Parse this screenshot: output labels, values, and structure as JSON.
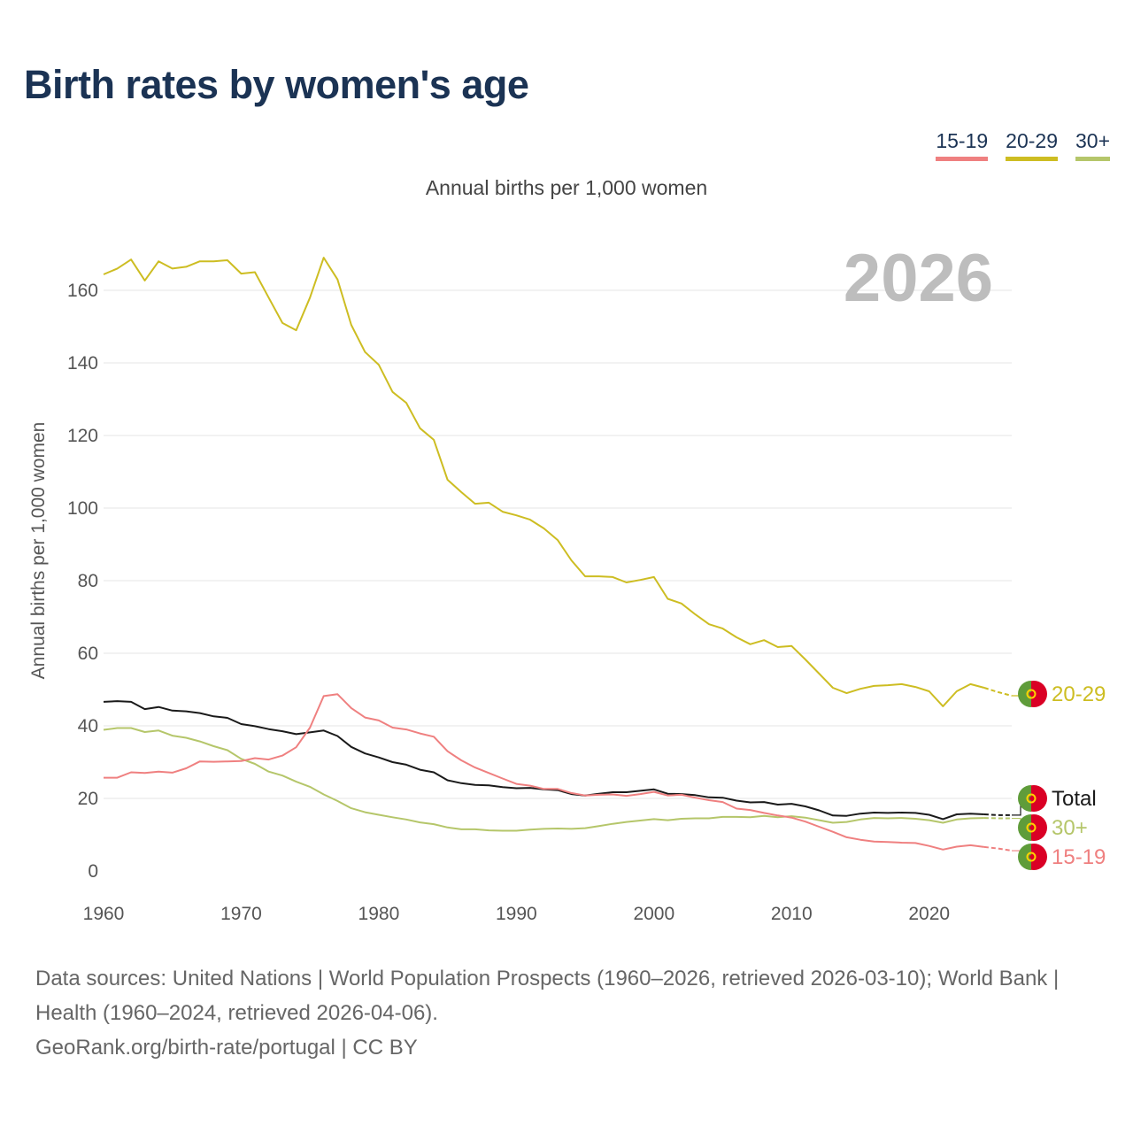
{
  "title": "Birth rates by women's age",
  "subtitle": "Annual births per 1,000 women",
  "sources": {
    "line1": "Data sources: United Nations | World Population Prospects (1960–2026, retrieved 2026-03-10); World Bank | Health (1960–2024, retrieved 2026-04-06).",
    "line2": "GeoRank.org/birth-rate/portugal | CC BY"
  },
  "colors": {
    "15-19": "#ef8080",
    "20-29": "#cdbd22",
    "30+": "#b5c66a",
    "Total": "#1a1a1a"
  },
  "chart_data": {
    "type": "line",
    "title": "Birth rates by women's age",
    "xlabel": "",
    "ylabel": "Annual births per 1,000 women",
    "year_label": "2026",
    "xlim": [
      1960,
      2026
    ],
    "ylim": [
      0,
      170
    ],
    "xticks": [
      1960,
      1970,
      1980,
      1990,
      2000,
      2010,
      2020
    ],
    "yticks": [
      0,
      20,
      40,
      60,
      80,
      100,
      120,
      140,
      160
    ],
    "grid": true,
    "legend": {
      "placement": "top-right",
      "entries": [
        "15-19",
        "20-29",
        "30+"
      ]
    },
    "projection_start": 2024,
    "x_start": 1960,
    "series": [
      {
        "name": "20-29",
        "end_label": "20-29",
        "values": [
          164.4,
          166,
          168.5,
          162.7,
          168,
          166,
          166.5,
          168,
          168,
          168.3,
          164.6,
          165,
          158,
          151,
          149,
          158,
          169,
          163,
          150.5,
          143,
          139.5,
          132,
          129,
          122,
          118.8,
          107.8,
          104.4,
          101.2,
          101.5,
          99,
          98,
          96.8,
          94.4,
          91.2,
          85.6,
          81.2,
          81.2,
          81,
          79.5,
          80.2,
          81,
          75,
          73.7,
          70.7,
          68,
          66.8,
          64.4,
          62.5,
          63.6,
          61.7,
          62,
          58.3,
          54.4,
          50.5,
          49,
          50.2,
          51,
          51.2,
          51.5,
          50.7,
          49.5,
          45.4,
          49.5,
          51.5,
          50.5,
          49.3,
          48.3
        ]
      },
      {
        "name": "Total",
        "end_label": "Total",
        "values": [
          46.6,
          46.8,
          46.6,
          44.6,
          45.2,
          44.2,
          44,
          43.5,
          42.6,
          42.2,
          40.5,
          39.9,
          39.1,
          38.5,
          37.7,
          38.2,
          38.7,
          37.2,
          34.2,
          32.4,
          31.3,
          30,
          29.3,
          27.9,
          27.2,
          25,
          24.2,
          23.7,
          23.6,
          23.1,
          22.8,
          22.9,
          22.5,
          22.3,
          21.2,
          20.8,
          21.3,
          21.7,
          21.7,
          22.1,
          22.5,
          21.3,
          21.2,
          20.9,
          20.3,
          20.2,
          19.4,
          18.9,
          19,
          18.3,
          18.5,
          17.8,
          16.7,
          15.3,
          15.2,
          15.8,
          16.1,
          16,
          16.1,
          16,
          15.5,
          14.3,
          15.6,
          15.8,
          15.6,
          15.4,
          15.4
        ]
      },
      {
        "name": "30+",
        "end_label": "30+",
        "values": [
          38.9,
          39.4,
          39.4,
          38.3,
          38.7,
          37.3,
          36.7,
          35.7,
          34.4,
          33.3,
          30.9,
          29.5,
          27.4,
          26.3,
          24.6,
          23.2,
          21.1,
          19.3,
          17.3,
          16.2,
          15.5,
          14.8,
          14.2,
          13.4,
          12.9,
          12,
          11.5,
          11.5,
          11.2,
          11.1,
          11.1,
          11.4,
          11.6,
          11.7,
          11.6,
          11.8,
          12.4,
          13,
          13.5,
          13.9,
          14.3,
          14,
          14.4,
          14.5,
          14.5,
          14.9,
          14.9,
          14.8,
          15.2,
          14.8,
          15.1,
          14.7,
          14,
          13.3,
          13.5,
          14.2,
          14.6,
          14.5,
          14.6,
          14.4,
          14,
          13.3,
          14.2,
          14.5,
          14.6,
          14.5,
          14.5
        ]
      },
      {
        "name": "15-19",
        "end_label": "15-19",
        "values": [
          25.7,
          25.7,
          27.2,
          27,
          27.4,
          27.1,
          28.3,
          30.2,
          30.1,
          30.2,
          30.3,
          31.1,
          30.7,
          31.8,
          34.1,
          39.5,
          48.2,
          48.7,
          44.9,
          42.3,
          41.5,
          39.5,
          39,
          37.9,
          37,
          33,
          30.5,
          28.5,
          27,
          25.5,
          24,
          23.5,
          22.6,
          22.6,
          21.5,
          20.8,
          21,
          21.1,
          20.7,
          21.2,
          21.8,
          20.8,
          21,
          20.2,
          19.5,
          19,
          17.2,
          16.8,
          16,
          15.3,
          14.7,
          13.6,
          12.2,
          10.8,
          9.3,
          8.6,
          8.1,
          8,
          7.8,
          7.7,
          6.9,
          5.9,
          6.7,
          7.1,
          6.6,
          6.2,
          5.6
        ]
      }
    ]
  }
}
